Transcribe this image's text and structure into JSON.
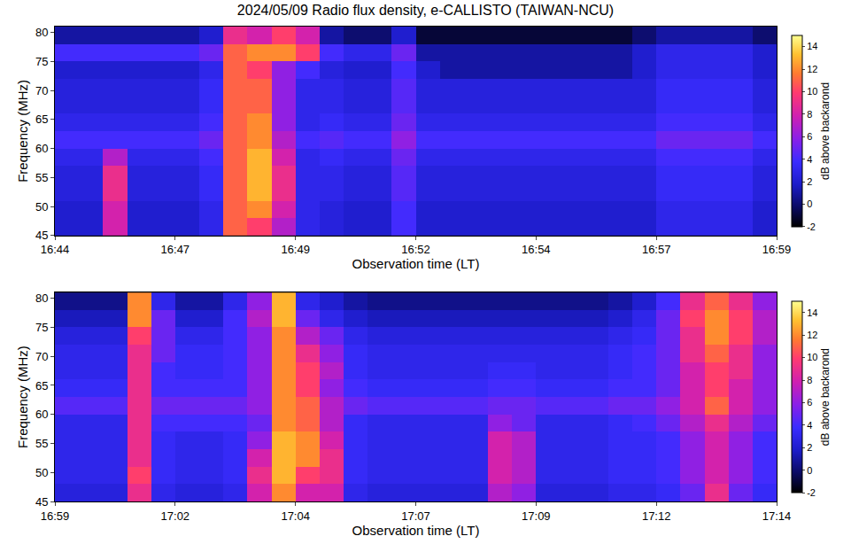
{
  "chart_data": [
    {
      "type": "heatmap",
      "title": "2024/05/09 Radio flux density, e-CALLISTO (TAIWAN-NCU)",
      "xlabel": "Observation time (LT)",
      "ylabel": "Frequency (MHz)",
      "x": [
        "2024-05-09 16:44:15",
        "2024-05-09 16:44:45",
        "2024-05-09 16:45:15",
        "2024-05-09 16:45:45",
        "2024-05-09 16:46:15",
        "2024-05-09 16:46:45",
        "2024-05-09 16:47:15",
        "2024-05-09 16:47:45",
        "2024-05-09 16:48:15",
        "2024-05-09 16:48:45",
        "2024-05-09 16:49:15",
        "2024-05-09 16:49:45",
        "2024-05-09 16:50:15",
        "2024-05-09 16:50:45",
        "2024-05-09 16:51:15",
        "2024-05-09 16:51:45",
        "2024-05-09 16:52:15",
        "2024-05-09 16:52:45",
        "2024-05-09 16:53:15",
        "2024-05-09 16:53:45",
        "2024-05-09 16:54:15",
        "2024-05-09 16:54:45",
        "2024-05-09 16:55:15",
        "2024-05-09 16:55:45",
        "2024-05-09 16:56:15",
        "2024-05-09 16:56:45",
        "2024-05-09 16:57:15",
        "2024-05-09 16:57:45",
        "2024-05-09 16:58:15",
        "2024-05-09 16:58:45"
      ],
      "y": [
        46.5,
        49.5,
        52.5,
        55.5,
        58.5,
        61.5,
        64.5,
        67.5,
        70.5,
        73.5,
        76.5,
        79.5
      ],
      "z": [
        [
          2,
          2,
          8,
          2,
          2,
          2,
          3,
          11,
          10,
          7,
          3,
          2.5,
          2,
          2,
          4,
          2,
          2,
          2,
          2,
          2,
          2,
          2,
          2,
          2,
          2,
          3,
          3,
          3,
          3,
          2
        ],
        [
          2,
          2,
          8,
          2,
          2,
          2,
          3,
          11,
          12,
          8,
          3,
          2.5,
          2,
          2,
          4,
          2,
          2,
          2,
          2,
          2,
          2,
          2,
          2,
          2,
          2,
          3,
          3,
          3,
          3,
          2
        ],
        [
          2.5,
          2.5,
          9,
          2.5,
          2.5,
          2.5,
          3.5,
          11,
          13,
          9,
          3,
          3,
          2.5,
          2.5,
          4.5,
          2.5,
          2.5,
          2.5,
          2.5,
          2.5,
          2.5,
          2.5,
          2.5,
          2.5,
          2.5,
          3.5,
          3.5,
          3.5,
          3.5,
          2.5
        ],
        [
          2.5,
          2.5,
          9,
          2.5,
          2.5,
          2.5,
          3.5,
          11,
          13,
          9,
          3,
          3,
          2.5,
          2.5,
          4.5,
          2.5,
          2.5,
          2.5,
          2.5,
          2.5,
          2.5,
          2.5,
          2.5,
          2.5,
          2.5,
          3.5,
          3.5,
          3.5,
          3.5,
          2.5
        ],
        [
          3,
          3,
          7,
          3,
          3,
          3,
          4,
          11,
          13,
          8,
          3,
          3.5,
          3,
          3,
          5,
          3,
          3,
          3,
          3,
          3,
          3,
          3,
          3,
          3,
          3,
          4,
          4,
          4,
          4,
          3
        ],
        [
          4,
          4,
          4,
          4,
          4,
          4,
          5,
          11,
          12,
          7,
          4,
          4.5,
          4,
          4,
          6,
          4,
          4,
          4,
          4,
          4,
          4,
          4,
          4,
          4,
          4,
          5,
          5,
          5,
          5,
          4
        ],
        [
          3,
          3,
          3,
          3,
          3,
          3,
          4,
          11,
          12,
          6,
          3,
          3.5,
          3,
          3,
          5,
          3,
          3,
          3,
          3,
          3,
          3,
          3,
          3,
          3,
          3,
          4,
          4,
          4,
          4,
          3
        ],
        [
          2.5,
          2.5,
          2.5,
          2.5,
          2.5,
          2.5,
          3.5,
          11,
          11,
          6,
          3,
          3,
          2.5,
          2.5,
          4.5,
          2.5,
          2.5,
          2.5,
          2.5,
          2.5,
          2.5,
          2.5,
          2.5,
          2.5,
          2.5,
          3.5,
          3.5,
          3.5,
          3.5,
          2.5
        ],
        [
          2.5,
          2.5,
          2.5,
          2.5,
          2.5,
          2.5,
          3.5,
          11,
          11,
          6,
          3,
          3,
          2.5,
          2.5,
          4.5,
          2.5,
          2.5,
          2.5,
          2.5,
          2.5,
          2.5,
          2.5,
          2.5,
          2.5,
          2.5,
          3.5,
          3.5,
          3.5,
          3.5,
          2.5
        ],
        [
          2,
          2,
          2,
          2,
          2,
          2,
          3,
          11,
          10,
          6,
          4,
          2.5,
          2,
          2,
          4,
          2,
          1,
          1,
          1,
          1,
          1,
          1,
          1,
          1,
          2,
          3,
          3,
          3,
          3,
          2
        ],
        [
          4,
          4,
          4,
          4,
          4,
          4,
          5,
          11,
          12,
          12,
          10,
          4,
          3,
          3,
          5,
          1,
          1,
          1,
          1,
          1,
          1,
          1,
          1,
          1,
          2,
          3,
          3,
          3,
          3,
          2
        ],
        [
          1,
          1,
          1,
          1,
          1,
          1,
          2,
          9,
          8,
          10,
          8,
          1,
          0,
          0,
          2,
          -1,
          -1,
          -1,
          -1,
          -1,
          -1,
          -1,
          -1,
          -1,
          0,
          1,
          1,
          1,
          1,
          0
        ]
      ],
      "xlim": [
        "2024-05-09 16:44:00",
        "2024-05-09 16:59:00"
      ],
      "xticks": [
        {
          "value": "2024-05-09 16:44:00",
          "label": "16:44"
        },
        {
          "value": "2024-05-09 16:46:30",
          "label": "16:47"
        },
        {
          "value": "2024-05-09 16:49:00",
          "label": "16:49"
        },
        {
          "value": "2024-05-09 16:51:30",
          "label": "16:52"
        },
        {
          "value": "2024-05-09 16:54:00",
          "label": "16:54"
        },
        {
          "value": "2024-05-09 16:56:30",
          "label": "16:57"
        },
        {
          "value": "2024-05-09 16:59:00",
          "label": "16:59"
        }
      ],
      "ylim": [
        45,
        81
      ],
      "yticks": [
        45,
        50,
        55,
        60,
        65,
        70,
        75,
        80
      ],
      "colorbar": {
        "title": "dB above backarond",
        "range": [
          -2,
          15
        ],
        "ticks": [
          -2,
          0,
          2,
          4,
          6,
          8,
          10,
          12,
          14
        ]
      }
    },
    {
      "type": "heatmap",
      "xlabel": "Observation time (LT)",
      "ylabel": "Frequency (MHz)",
      "x": [
        "2024-05-09 16:59:15",
        "2024-05-09 16:59:45",
        "2024-05-09 17:00:15",
        "2024-05-09 17:00:45",
        "2024-05-09 17:01:15",
        "2024-05-09 17:01:45",
        "2024-05-09 17:02:15",
        "2024-05-09 17:02:45",
        "2024-05-09 17:03:15",
        "2024-05-09 17:03:45",
        "2024-05-09 17:04:15",
        "2024-05-09 17:04:45",
        "2024-05-09 17:05:15",
        "2024-05-09 17:05:45",
        "2024-05-09 17:06:15",
        "2024-05-09 17:06:45",
        "2024-05-09 17:07:15",
        "2024-05-09 17:07:45",
        "2024-05-09 17:08:15",
        "2024-05-09 17:08:45",
        "2024-05-09 17:09:15",
        "2024-05-09 17:09:45",
        "2024-05-09 17:10:15",
        "2024-05-09 17:10:45",
        "2024-05-09 17:11:15",
        "2024-05-09 17:11:45",
        "2024-05-09 17:12:15",
        "2024-05-09 17:12:45",
        "2024-05-09 17:13:15",
        "2024-05-09 17:13:45"
      ],
      "y": [
        46.5,
        49.5,
        52.5,
        55.5,
        58.5,
        61.5,
        64.5,
        67.5,
        70.5,
        73.5,
        76.5,
        79.5
      ],
      "z": [
        [
          2.5,
          2.5,
          2.5,
          9,
          3,
          2.5,
          2.5,
          3,
          8,
          12,
          8,
          8,
          3,
          2.5,
          2.5,
          2.5,
          2.5,
          2.5,
          7,
          6,
          2.5,
          2.5,
          2.5,
          3,
          3,
          3.5,
          5,
          9,
          5,
          3.5
        ],
        [
          3,
          3,
          3,
          10,
          3.5,
          3,
          3,
          3.5,
          9,
          13,
          10,
          9,
          3.5,
          3,
          3,
          3,
          3,
          3,
          8,
          7,
          3,
          3,
          3,
          3.5,
          3.5,
          4,
          6,
          8,
          6,
          4
        ],
        [
          3,
          3,
          3,
          9,
          3.5,
          3,
          3,
          3.5,
          8,
          13,
          12,
          9,
          3.5,
          3,
          3,
          3,
          3,
          3,
          8,
          7,
          3,
          3,
          3,
          3.5,
          3.5,
          4,
          6,
          8,
          6,
          4
        ],
        [
          3,
          3,
          3,
          9,
          3.5,
          3,
          3,
          3.5,
          6,
          13,
          12,
          8,
          3.5,
          3,
          3,
          3,
          3,
          3,
          8,
          7,
          3,
          3,
          3,
          3.5,
          3.5,
          4,
          6,
          8,
          6,
          4
        ],
        [
          3,
          3,
          3,
          9,
          4,
          4,
          4,
          4,
          5,
          12,
          11,
          7,
          3.5,
          3,
          3,
          3,
          3,
          3,
          6,
          5,
          3,
          3,
          3,
          3.5,
          4,
          5,
          7,
          9,
          7,
          5
        ],
        [
          4.5,
          4.5,
          4.5,
          9,
          5,
          5,
          5,
          5,
          6,
          12,
          11,
          7,
          5,
          4.5,
          4.5,
          4.5,
          4.5,
          4.5,
          5,
          5,
          4.5,
          4.5,
          4.5,
          5,
          5,
          6,
          8,
          11,
          8,
          6
        ],
        [
          3.5,
          3.5,
          3.5,
          9,
          4,
          4,
          4,
          4,
          6,
          12,
          10,
          6,
          4,
          3.5,
          3.5,
          3.5,
          3.5,
          3.5,
          4,
          4,
          3.5,
          3.5,
          3.5,
          4,
          4,
          5,
          8,
          10,
          8,
          6
        ],
        [
          3,
          3,
          3,
          9,
          4,
          3.5,
          3.5,
          4,
          6,
          12,
          10,
          7,
          3.5,
          3,
          3,
          3,
          3,
          3,
          3.5,
          3.5,
          3,
          3,
          3,
          3.5,
          4,
          5,
          8,
          10,
          9,
          6
        ],
        [
          3,
          3,
          3,
          9,
          5,
          3.5,
          3.5,
          4,
          6,
          12,
          9,
          6,
          3.5,
          3,
          3,
          3,
          3,
          3,
          3,
          3,
          3,
          3,
          3,
          3.5,
          4,
          5,
          9,
          11,
          9,
          6
        ],
        [
          2.5,
          2.5,
          2.5,
          10,
          5,
          3,
          3,
          4,
          6,
          12,
          7,
          5,
          3,
          2.5,
          2.5,
          2.5,
          2.5,
          2.5,
          2.5,
          2.5,
          2.5,
          2.5,
          2.5,
          3,
          3.5,
          5,
          9,
          12,
          10,
          7
        ],
        [
          1.5,
          1.5,
          1.5,
          12,
          5,
          2,
          2,
          4,
          7,
          13,
          5,
          3,
          2,
          1.5,
          1.5,
          1.5,
          1.5,
          1.5,
          1.5,
          1.5,
          1.5,
          1.5,
          1.5,
          2,
          3,
          5,
          10,
          12,
          10,
          7
        ],
        [
          0.5,
          0.5,
          0.5,
          12,
          3,
          1,
          1,
          3,
          6,
          13,
          3,
          2,
          1,
          0.5,
          0.5,
          0.5,
          0.5,
          0.5,
          0.5,
          0.5,
          0.5,
          0.5,
          0.5,
          1,
          2,
          4,
          9,
          11,
          9,
          6
        ]
      ],
      "xlim": [
        "2024-05-09 16:59:00",
        "2024-05-09 17:14:00"
      ],
      "xticks": [
        {
          "value": "2024-05-09 16:59:00",
          "label": "16:59"
        },
        {
          "value": "2024-05-09 17:01:30",
          "label": "17:02"
        },
        {
          "value": "2024-05-09 17:04:00",
          "label": "17:04"
        },
        {
          "value": "2024-05-09 17:06:30",
          "label": "17:07"
        },
        {
          "value": "2024-05-09 17:09:00",
          "label": "17:09"
        },
        {
          "value": "2024-05-09 17:11:30",
          "label": "17:12"
        },
        {
          "value": "2024-05-09 17:14:00",
          "label": "17:14"
        }
      ],
      "ylim": [
        45,
        81
      ],
      "yticks": [
        45,
        50,
        55,
        60,
        65,
        70,
        75,
        80
      ],
      "colorbar": {
        "title": "dB above backarond",
        "range": [
          -2,
          15
        ],
        "ticks": [
          -2,
          0,
          2,
          4,
          6,
          8,
          10,
          12,
          14
        ]
      }
    }
  ]
}
